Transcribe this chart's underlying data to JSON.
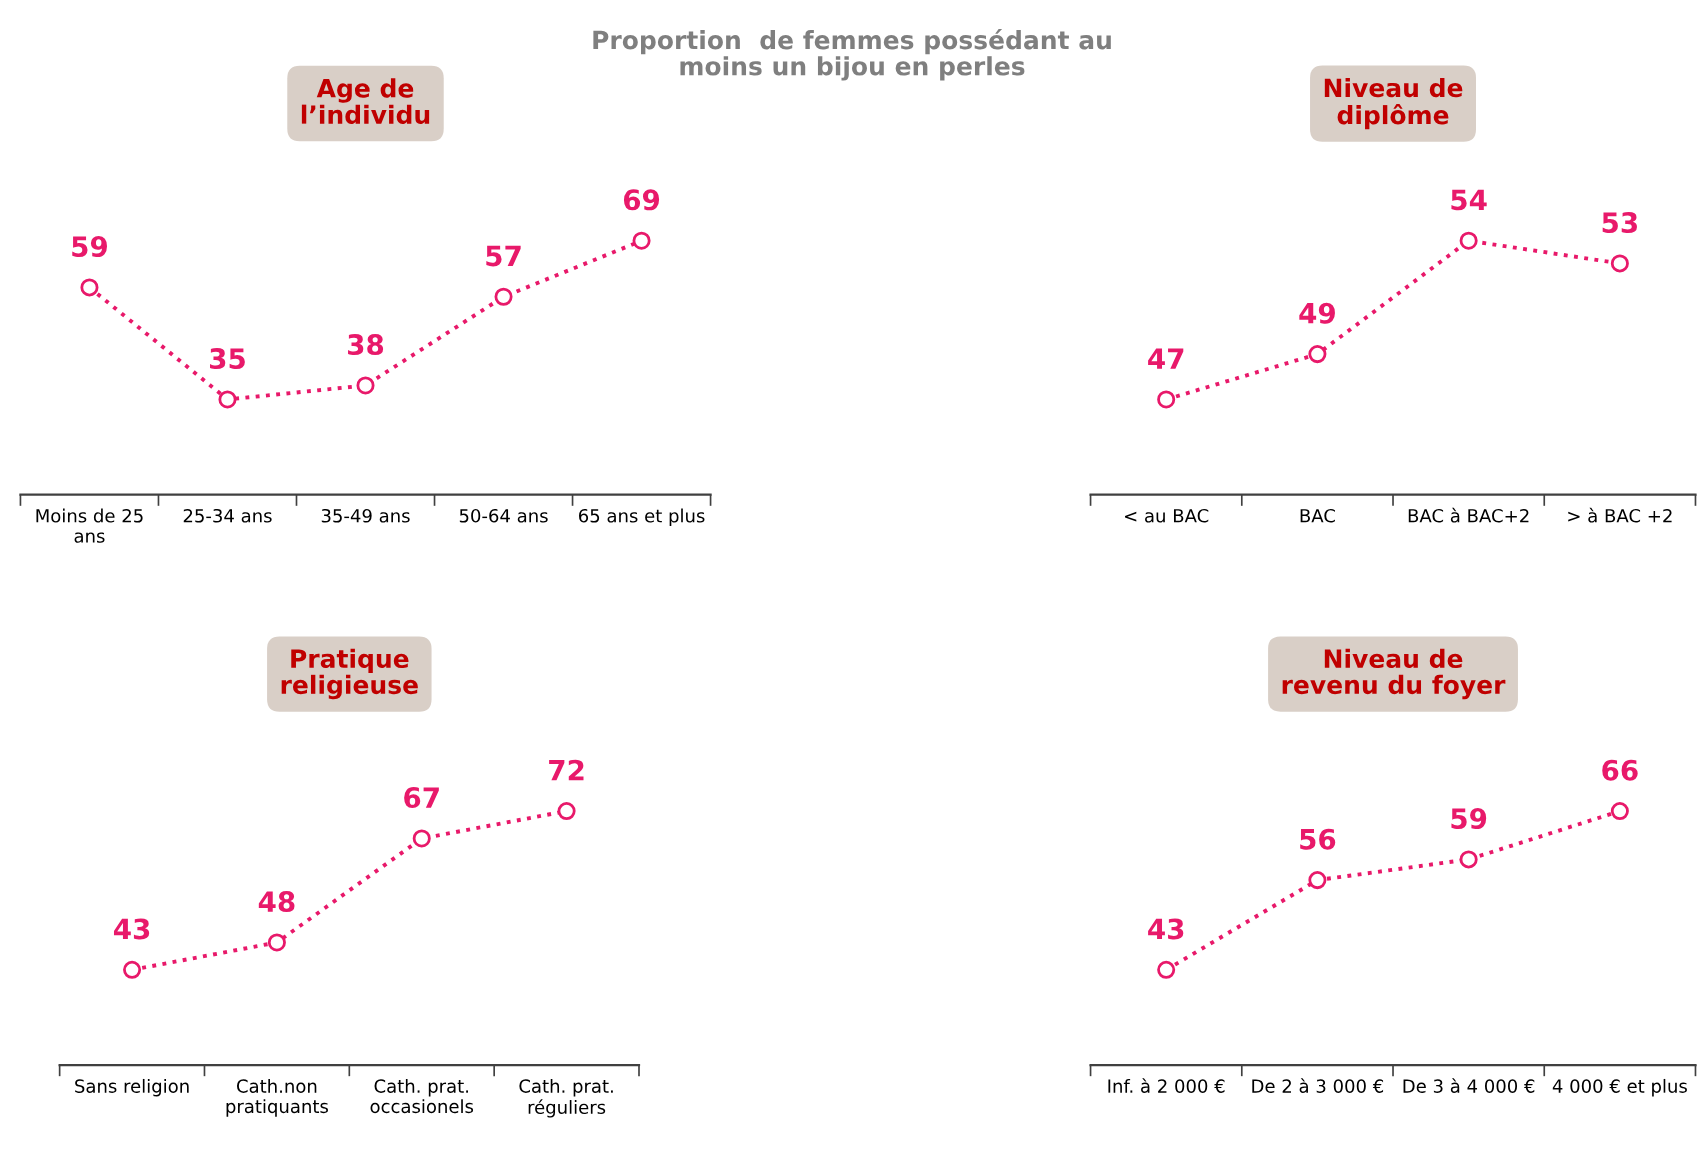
{
  "chart_data": [
    {
      "type": "line",
      "title": "Age de\nl’individu",
      "annotations": [
        "Proportion  de femmes possédant au\nmoins un bijou en perles"
      ],
      "categories": [
        "Moins de 25\nans",
        "25-34 ans",
        "35-49 ans",
        "50-64 ans",
        "65 ans et plus"
      ],
      "series": [
        {
          "color": "#e8196a",
          "values": [
            59,
            35,
            38,
            57,
            69
          ]
        }
      ],
      "tick_labels": "x",
      "data_labels": true,
      "marker": "circle",
      "line_style": "dotted",
      "grid": false,
      "legend": false
    },
    {
      "type": "line",
      "title": "Niveau de\ndiplôme",
      "categories": [
        "< au BAC",
        "BAC",
        "BAC à BAC+2",
        "> à BAC +2"
      ],
      "series": [
        {
          "color": "#e8196a",
          "values": [
            47,
            49,
            54,
            53
          ]
        }
      ],
      "tick_labels": "x",
      "data_labels": true,
      "marker": "circle",
      "line_style": "dotted",
      "grid": false,
      "legend": false
    },
    {
      "type": "line",
      "title": "Pratique\nreligieuse",
      "categories": [
        "Sans religion",
        "Cath.non\npratiquants",
        "Cath. prat.\noccasionels",
        "Cath. prat.\nréguliers"
      ],
      "series": [
        {
          "color": "#e8196a",
          "values": [
            43,
            48,
            67,
            72
          ]
        }
      ],
      "tick_labels": "x",
      "data_labels": true,
      "marker": "circle",
      "line_style": "dotted",
      "grid": false,
      "legend": false
    },
    {
      "type": "line",
      "title": "Niveau de\nrevenu du foyer",
      "categories": [
        "Inf. à 2 000 €",
        "De 2 à 3 000 €",
        "De 3 à 4 000 €",
        "4 000 € et plus"
      ],
      "series": [
        {
          "color": "#e8196a",
          "values": [
            43,
            56,
            59,
            66
          ]
        }
      ],
      "tick_labels": "x",
      "data_labels": true,
      "marker": "circle",
      "line_style": "dotted",
      "grid": false,
      "legend": false
    }
  ]
}
